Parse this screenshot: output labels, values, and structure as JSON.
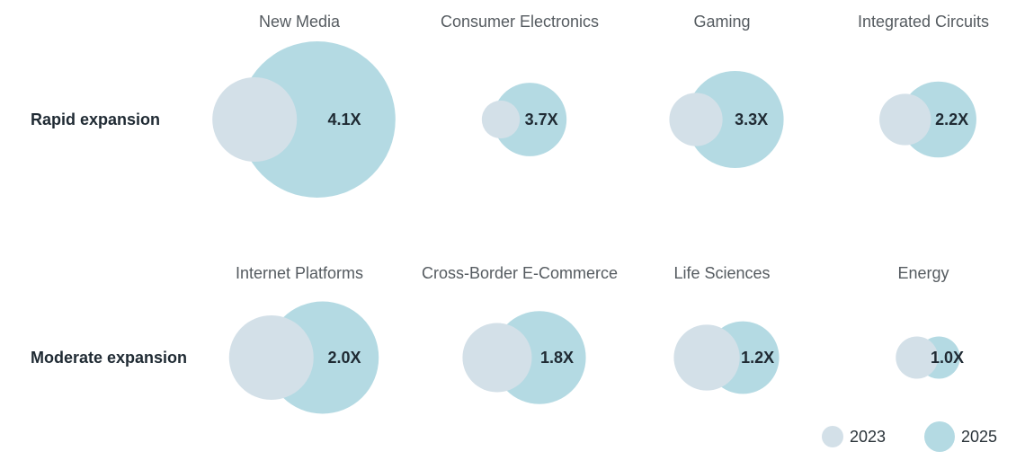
{
  "colors": {
    "c2023": "#d3e0e8",
    "c2025": "#b4dae3"
  },
  "legend": {
    "items": [
      {
        "label": "2023",
        "color_key": "c2023"
      },
      {
        "label": "2025",
        "color_key": "c2025"
      }
    ]
  },
  "chart_data": {
    "type": "bubble",
    "rows": [
      {
        "label": "Rapid expansion",
        "items": [
          {
            "category": "New Media",
            "multiplier": "4.1X",
            "r2023": 1.0,
            "r2025": 1.85
          },
          {
            "category": "Consumer Electronics",
            "multiplier": "3.7X",
            "r2023": 0.45,
            "r2025": 0.87
          },
          {
            "category": "Gaming",
            "multiplier": "3.3X",
            "r2023": 0.63,
            "r2025": 1.15
          },
          {
            "category": "Integrated Circuits",
            "multiplier": "2.2X",
            "r2023": 0.61,
            "r2025": 0.9
          }
        ]
      },
      {
        "label": "Moderate expansion",
        "items": [
          {
            "category": "Internet Platforms",
            "multiplier": "2.0X",
            "r2023": 1.0,
            "r2025": 1.33
          },
          {
            "category": "Cross-Border E-Commerce",
            "multiplier": "1.8X",
            "r2023": 0.82,
            "r2025": 1.1
          },
          {
            "category": "Life Sciences",
            "multiplier": "1.2X",
            "r2023": 0.78,
            "r2025": 0.86
          },
          {
            "category": "Energy",
            "multiplier": "1.0X",
            "r2023": 0.5,
            "r2025": 0.5
          }
        ]
      }
    ]
  }
}
